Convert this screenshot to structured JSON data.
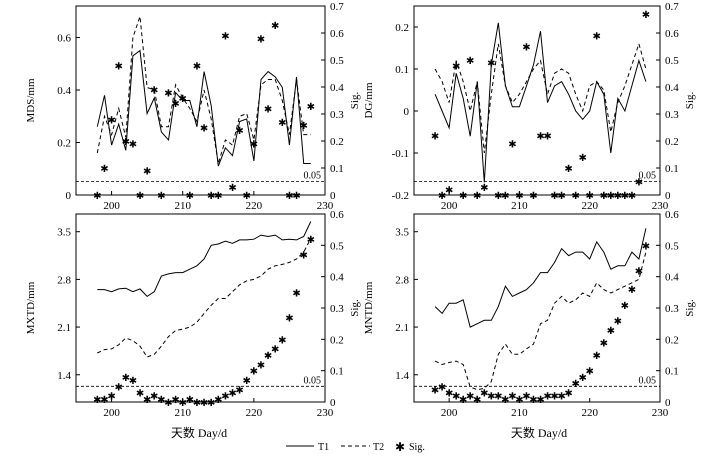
{
  "chart_data": [
    {
      "type": "line",
      "id": "MDS",
      "ylabel": "MDS/mm",
      "y2label": "Sig.",
      "xlim": [
        195,
        230
      ],
      "ylim": [
        0,
        0.72
      ],
      "y2lim": [
        0,
        0.7
      ],
      "yticks": [
        0,
        0.2,
        0.4,
        0.6
      ],
      "ytick_labels": [
        "0",
        "0.2",
        "0.4",
        "0.6"
      ],
      "y2ticks": [
        0,
        0.1,
        0.2,
        0.3,
        0.4,
        0.5,
        0.6,
        0.7
      ],
      "y2tick_labels": [
        "0",
        "0.1",
        "0.2",
        "0.3",
        "0.4",
        "0.5",
        "0.6",
        "0.7"
      ],
      "xticks": [
        200,
        210,
        220,
        230
      ],
      "xtick_labels": [
        "200",
        "210",
        "220",
        "230"
      ],
      "show_xtick_labels": true,
      "sig_threshold": 0.05,
      "sig_label": "0.05",
      "x": [
        198,
        199,
        200,
        201,
        202,
        203,
        204,
        205,
        206,
        207,
        208,
        209,
        210,
        211,
        212,
        213,
        214,
        215,
        216,
        217,
        218,
        219,
        220,
        221,
        222,
        223,
        224,
        225,
        226,
        227,
        228
      ],
      "series": [
        {
          "name": "T1",
          "values": [
            0.26,
            0.38,
            0.19,
            0.27,
            0.17,
            0.53,
            0.55,
            0.31,
            0.37,
            0.24,
            0.21,
            0.39,
            0.36,
            0.36,
            0.26,
            0.47,
            0.34,
            0.11,
            0.18,
            0.15,
            0.28,
            0.29,
            0.13,
            0.44,
            0.47,
            0.45,
            0.41,
            0.19,
            0.45,
            0.12,
            0.12
          ]
        },
        {
          "name": "T2",
          "values": [
            0.16,
            0.3,
            0.23,
            0.33,
            0.22,
            0.6,
            0.68,
            0.41,
            0.4,
            0.26,
            0.26,
            0.42,
            0.37,
            0.33,
            0.28,
            0.4,
            0.29,
            0.12,
            0.21,
            0.19,
            0.3,
            0.31,
            0.21,
            0.42,
            0.44,
            0.44,
            0.36,
            0.23,
            0.44,
            0.23,
            0.23
          ]
        }
      ],
      "sig": {
        "x": [
          198,
          199,
          200,
          201,
          202,
          203,
          204,
          205,
          206,
          207,
          208,
          209,
          210,
          211,
          212,
          213,
          214,
          215,
          216,
          217,
          218,
          219,
          220,
          221,
          222,
          223,
          224,
          225,
          226,
          227,
          228
        ],
        "values": [
          0.0,
          0.1,
          0.28,
          0.48,
          0.2,
          0.19,
          0.0,
          0.09,
          0.39,
          0.0,
          0.38,
          0.34,
          0.36,
          0.0,
          0.48,
          0.25,
          0.0,
          0.0,
          0.59,
          0.03,
          0.24,
          0.0,
          0.19,
          0.58,
          0.32,
          0.63,
          0.27,
          0.0,
          0.0,
          0.26,
          0.33
        ]
      }
    },
    {
      "type": "line",
      "id": "DG",
      "ylabel": "DG/mm",
      "y2label": "Sig.",
      "xlim": [
        195,
        230
      ],
      "ylim": [
        -0.2,
        0.25
      ],
      "y2lim": [
        0,
        0.7
      ],
      "yticks": [
        -0.2,
        -0.1,
        0,
        0.1,
        0.2
      ],
      "ytick_labels": [
        "-0.2",
        "-0.1",
        "0",
        "0.1",
        "0.2"
      ],
      "y2ticks": [
        0,
        0.1,
        0.2,
        0.3,
        0.4,
        0.5,
        0.6,
        0.7
      ],
      "y2tick_labels": [
        "0",
        "0.1",
        "0.2",
        "0.3",
        "0.4",
        "0.5",
        "0.6",
        "0.7"
      ],
      "xticks": [
        200,
        210,
        220,
        230
      ],
      "xtick_labels": [
        "200",
        "210",
        "220",
        "230"
      ],
      "show_xtick_labels": true,
      "sig_threshold": 0.05,
      "sig_label": "0.05",
      "x": [
        198,
        199,
        200,
        201,
        202,
        203,
        204,
        205,
        206,
        207,
        208,
        209,
        210,
        211,
        212,
        213,
        214,
        215,
        216,
        217,
        218,
        219,
        220,
        221,
        222,
        223,
        224,
        225,
        226,
        227,
        228
      ],
      "series": [
        {
          "name": "T1",
          "values": [
            0.04,
            0.0,
            -0.04,
            0.09,
            0.03,
            -0.06,
            0.07,
            -0.17,
            0.11,
            0.21,
            0.06,
            0.01,
            0.01,
            0.06,
            0.11,
            0.19,
            0.02,
            0.06,
            0.07,
            0.04,
            0.0,
            -0.02,
            0.0,
            0.07,
            0.04,
            -0.1,
            0.03,
            0.0,
            0.06,
            0.12,
            0.07
          ]
        },
        {
          "name": "T2",
          "values": [
            0.1,
            0.07,
            0.02,
            0.12,
            0.07,
            0.0,
            0.07,
            -0.1,
            0.04,
            0.16,
            0.06,
            0.02,
            0.04,
            0.07,
            0.1,
            0.12,
            0.04,
            0.09,
            0.1,
            0.09,
            0.04,
            0.0,
            0.06,
            0.07,
            0.05,
            -0.05,
            0.02,
            0.06,
            0.11,
            0.16,
            0.1
          ]
        }
      ],
      "sig": {
        "x": [
          198,
          199,
          200,
          201,
          202,
          203,
          204,
          205,
          206,
          207,
          208,
          209,
          210,
          211,
          212,
          213,
          214,
          215,
          216,
          217,
          218,
          219,
          220,
          221,
          222,
          223,
          224,
          225,
          226,
          227,
          228
        ],
        "values": [
          0.22,
          0.0,
          0.02,
          0.48,
          0.0,
          0.5,
          0.0,
          0.03,
          0.49,
          0.0,
          0.0,
          0.19,
          0.0,
          0.55,
          0.0,
          0.22,
          0.22,
          0.0,
          0.0,
          0.1,
          0.0,
          0.14,
          0.0,
          0.59,
          0.0,
          0.0,
          0.0,
          0.0,
          0.0,
          0.05,
          0.67
        ]
      }
    },
    {
      "type": "line",
      "id": "MXTD",
      "ylabel": "MXTD/mm",
      "y2label": "Sig.",
      "xlim": [
        195,
        230
      ],
      "ylim": [
        1.0,
        3.76
      ],
      "y2lim": [
        0,
        0.6
      ],
      "yticks": [
        1.4,
        2.1,
        2.8,
        3.5
      ],
      "ytick_labels": [
        "1.4",
        "2.1",
        "2.8",
        "3.5"
      ],
      "y2ticks": [
        0,
        0.1,
        0.2,
        0.3,
        0.4,
        0.5,
        0.6
      ],
      "y2tick_labels": [
        "0",
        "0.1",
        "0.2",
        "0.3",
        "0.4",
        "0.5",
        "0.6"
      ],
      "xticks": [
        200,
        210,
        220,
        230
      ],
      "xtick_labels": [
        "200",
        "210",
        "220",
        "230"
      ],
      "show_xtick_labels": true,
      "sig_threshold": 0.05,
      "sig_label": "0.05",
      "x": [
        198,
        199,
        200,
        201,
        202,
        203,
        204,
        205,
        206,
        207,
        208,
        209,
        210,
        211,
        212,
        213,
        214,
        215,
        216,
        217,
        218,
        219,
        220,
        221,
        222,
        223,
        224,
        225,
        226,
        227,
        228
      ],
      "series": [
        {
          "name": "T1",
          "values": [
            2.65,
            2.65,
            2.62,
            2.66,
            2.67,
            2.62,
            2.66,
            2.55,
            2.62,
            2.85,
            2.88,
            2.9,
            2.9,
            2.95,
            3.0,
            3.1,
            3.3,
            3.32,
            3.36,
            3.33,
            3.38,
            3.38,
            3.39,
            3.45,
            3.43,
            3.45,
            3.38,
            3.39,
            3.38,
            3.43,
            3.65
          ]
        },
        {
          "name": "T2",
          "values": [
            1.72,
            1.77,
            1.78,
            1.84,
            1.94,
            1.9,
            1.82,
            1.66,
            1.7,
            1.82,
            1.96,
            2.05,
            2.07,
            2.1,
            2.17,
            2.3,
            2.42,
            2.52,
            2.52,
            2.62,
            2.72,
            2.78,
            2.8,
            2.85,
            2.95,
            3.0,
            3.02,
            3.05,
            3.1,
            3.2,
            3.4
          ]
        }
      ],
      "sig": {
        "x": [
          198,
          199,
          200,
          201,
          202,
          203,
          204,
          205,
          206,
          207,
          208,
          209,
          210,
          211,
          212,
          213,
          214,
          215,
          216,
          217,
          218,
          219,
          220,
          221,
          222,
          223,
          224,
          225,
          226,
          227,
          228
        ],
        "values": [
          0.01,
          0.01,
          0.02,
          0.05,
          0.08,
          0.07,
          0.03,
          0.01,
          0.02,
          0.01,
          0.0,
          0.01,
          0.0,
          0.01,
          0.0,
          0.0,
          0.0,
          0.01,
          0.02,
          0.03,
          0.04,
          0.07,
          0.1,
          0.12,
          0.15,
          0.17,
          0.2,
          0.27,
          0.35,
          0.47,
          0.52
        ]
      }
    },
    {
      "type": "line",
      "id": "MNTD",
      "ylabel": "MNTD/mm",
      "y2label": "Sig.",
      "xlim": [
        195,
        230
      ],
      "ylim": [
        1.0,
        3.76
      ],
      "y2lim": [
        0,
        0.6
      ],
      "yticks": [
        1.4,
        2.1,
        2.8,
        3.5
      ],
      "ytick_labels": [
        "1.4",
        "2.1",
        "2.8",
        "3.5"
      ],
      "y2ticks": [
        0,
        0.1,
        0.2,
        0.3,
        0.4,
        0.5,
        0.6
      ],
      "y2tick_labels": [
        "0",
        "0.1",
        "0.2",
        "0.3",
        "0.4",
        "0.5",
        "0.6"
      ],
      "xticks": [
        200,
        210,
        220,
        230
      ],
      "xtick_labels": [
        "200",
        "210",
        "220",
        "230"
      ],
      "show_xtick_labels": true,
      "sig_threshold": 0.05,
      "sig_label": "0.05",
      "x": [
        198,
        199,
        200,
        201,
        202,
        203,
        204,
        205,
        206,
        207,
        208,
        209,
        210,
        211,
        212,
        213,
        214,
        215,
        216,
        217,
        218,
        219,
        220,
        221,
        222,
        223,
        224,
        225,
        226,
        227,
        228
      ],
      "series": [
        {
          "name": "T1",
          "values": [
            2.4,
            2.3,
            2.45,
            2.45,
            2.5,
            2.1,
            2.15,
            2.2,
            2.2,
            2.4,
            2.7,
            2.55,
            2.6,
            2.65,
            2.75,
            2.9,
            2.9,
            3.05,
            3.25,
            3.15,
            3.2,
            3.2,
            3.1,
            3.35,
            3.2,
            2.95,
            3.0,
            3.0,
            3.2,
            3.1,
            3.55
          ]
        },
        {
          "name": "T2",
          "values": [
            1.6,
            1.55,
            1.58,
            1.6,
            1.55,
            1.22,
            1.18,
            1.2,
            1.3,
            1.7,
            1.85,
            1.7,
            1.7,
            1.78,
            1.85,
            2.15,
            2.2,
            2.45,
            2.55,
            2.45,
            2.5,
            2.6,
            2.55,
            2.75,
            2.65,
            2.6,
            2.65,
            2.7,
            2.75,
            2.8,
            3.2
          ]
        }
      ],
      "sig": {
        "x": [
          198,
          199,
          200,
          201,
          202,
          203,
          204,
          205,
          206,
          207,
          208,
          209,
          210,
          211,
          212,
          213,
          214,
          215,
          216,
          217,
          218,
          219,
          220,
          221,
          222,
          223,
          224,
          225,
          226,
          227,
          228
        ],
        "values": [
          0.04,
          0.05,
          0.03,
          0.02,
          0.01,
          0.02,
          0.01,
          0.03,
          0.02,
          0.02,
          0.01,
          0.02,
          0.01,
          0.02,
          0.01,
          0.01,
          0.02,
          0.02,
          0.02,
          0.03,
          0.06,
          0.08,
          0.1,
          0.15,
          0.19,
          0.23,
          0.26,
          0.31,
          0.36,
          0.42,
          0.5
        ]
      }
    }
  ],
  "x_axis_title": "天数 Day/d",
  "legend": {
    "t1_label": "T1",
    "t2_label": "T2",
    "sig_label": "Sig.",
    "sig_marker": "✱"
  }
}
